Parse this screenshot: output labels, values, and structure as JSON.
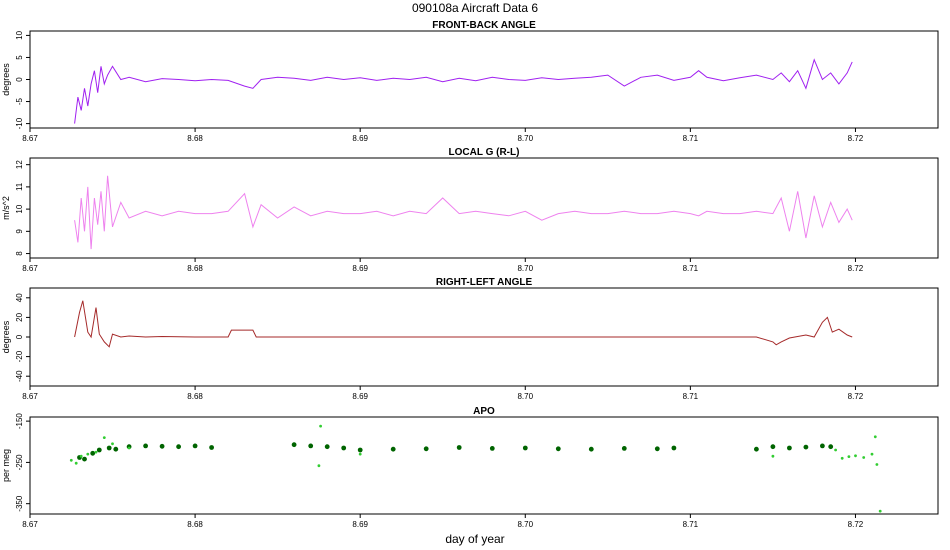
{
  "figure": {
    "title": "090108a    Aircraft Data 6",
    "xlabel": "day of year"
  },
  "chart_data": [
    {
      "type": "line",
      "title": "FRONT-BACK ANGLE",
      "ylabel": "degrees",
      "color": "#a020f0",
      "xlim": [
        8.67,
        8.725
      ],
      "ylim": [
        -11,
        11
      ],
      "xticks": [
        8.67,
        8.68,
        8.69,
        8.7,
        8.71,
        8.72
      ],
      "xtick_labels": [
        "8.67",
        "8.68",
        "8.69",
        "8.70",
        "8.71",
        "8.72"
      ],
      "yticks": [
        -10,
        -5,
        0,
        5,
        10
      ],
      "ytick_labels": [
        "-10",
        "-5",
        "0",
        "5",
        "10"
      ],
      "series": [
        {
          "x": [
            8.6727,
            8.6729,
            8.6731,
            8.6733,
            8.6735,
            8.6737,
            8.6739,
            8.6741,
            8.6743,
            8.6745,
            8.6747,
            8.675,
            8.6755,
            8.676,
            8.677,
            8.678,
            8.679,
            8.68,
            8.681,
            8.682,
            8.683,
            8.6835,
            8.684,
            8.685,
            8.686,
            8.687,
            8.688,
            8.689,
            8.69,
            8.691,
            8.692,
            8.693,
            8.694,
            8.695,
            8.696,
            8.697,
            8.698,
            8.699,
            8.7,
            8.701,
            8.702,
            8.703,
            8.704,
            8.705,
            8.706,
            8.707,
            8.708,
            8.709,
            8.71,
            8.7105,
            8.711,
            8.712,
            8.713,
            8.714,
            8.715,
            8.7155,
            8.716,
            8.7165,
            8.717,
            8.7175,
            8.718,
            8.7185,
            8.719,
            8.7195,
            8.7198
          ],
          "y": [
            -10,
            -4,
            -7,
            -2,
            -6,
            -1,
            2,
            -3,
            3,
            -1,
            1,
            3,
            0,
            0.5,
            -0.5,
            0.2,
            0,
            -0.3,
            0,
            -0.2,
            -1.5,
            -2,
            0,
            0.5,
            0.3,
            -0.2,
            0.5,
            0,
            0.4,
            -0.2,
            0.3,
            0,
            0.5,
            -0.5,
            0.3,
            -0.3,
            0.5,
            0,
            -0.2,
            0.4,
            0,
            0.3,
            0.5,
            1,
            -1.5,
            0.5,
            1,
            -0.2,
            0.5,
            2,
            0.5,
            -0.3,
            0.4,
            1,
            0,
            1.5,
            -0.5,
            2,
            -2,
            4.5,
            0,
            1.5,
            -1,
            1.5,
            4
          ]
        }
      ]
    },
    {
      "type": "line",
      "title": "LOCAL G (R-L)",
      "ylabel": "m/s^2",
      "color": "#ee82ee",
      "xlim": [
        8.67,
        8.725
      ],
      "ylim": [
        7.8,
        12.3
      ],
      "xticks": [
        8.67,
        8.68,
        8.69,
        8.7,
        8.71,
        8.72
      ],
      "xtick_labels": [
        "8.67",
        "8.68",
        "8.69",
        "8.70",
        "8.71",
        "8.72"
      ],
      "yticks": [
        8,
        9,
        10,
        11,
        12
      ],
      "ytick_labels": [
        "8",
        "9",
        "10",
        "11",
        "12"
      ],
      "series": [
        {
          "x": [
            8.6727,
            8.6729,
            8.6731,
            8.6733,
            8.6735,
            8.6737,
            8.6739,
            8.6741,
            8.6743,
            8.6745,
            8.6747,
            8.675,
            8.6755,
            8.676,
            8.677,
            8.678,
            8.679,
            8.68,
            8.681,
            8.682,
            8.683,
            8.6835,
            8.684,
            8.685,
            8.686,
            8.687,
            8.688,
            8.689,
            8.69,
            8.691,
            8.692,
            8.693,
            8.694,
            8.695,
            8.696,
            8.697,
            8.698,
            8.699,
            8.7,
            8.701,
            8.702,
            8.703,
            8.704,
            8.705,
            8.706,
            8.707,
            8.708,
            8.709,
            8.71,
            8.7105,
            8.711,
            8.712,
            8.713,
            8.714,
            8.715,
            8.7155,
            8.716,
            8.7165,
            8.717,
            8.7175,
            8.718,
            8.7185,
            8.719,
            8.7195,
            8.7198
          ],
          "y": [
            9.5,
            8.5,
            10.5,
            9,
            11,
            8.2,
            10.5,
            9.3,
            10.8,
            9,
            11.5,
            9.2,
            10.3,
            9.6,
            9.9,
            9.7,
            9.9,
            9.8,
            9.8,
            9.9,
            10.7,
            9.2,
            10.2,
            9.6,
            10.1,
            9.7,
            9.9,
            9.8,
            9.8,
            9.9,
            9.7,
            9.9,
            9.8,
            10.5,
            9.8,
            9.9,
            9.8,
            9.7,
            9.9,
            9.5,
            9.8,
            9.9,
            9.8,
            9.8,
            9.9,
            9.8,
            9.8,
            9.9,
            9.8,
            9.7,
            9.9,
            9.8,
            9.8,
            9.9,
            9.8,
            10.5,
            9.0,
            10.8,
            8.7,
            10.6,
            9.2,
            10.3,
            9.4,
            10.0,
            9.5
          ]
        }
      ]
    },
    {
      "type": "line",
      "title": "RIGHT-LEFT ANGLE",
      "ylabel": "degrees",
      "color": "#a52a2a",
      "xlim": [
        8.67,
        8.725
      ],
      "ylim": [
        -50,
        50
      ],
      "xticks": [
        8.67,
        8.68,
        8.69,
        8.7,
        8.71,
        8.72
      ],
      "xtick_labels": [
        "8.67",
        "8.68",
        "8.69",
        "8.70",
        "8.71",
        "8.72"
      ],
      "yticks": [
        -40,
        -20,
        0,
        20,
        40
      ],
      "ytick_labels": [
        "-40",
        "-20",
        "0",
        "20",
        "40"
      ],
      "series": [
        {
          "x": [
            8.6727,
            8.673,
            8.6732,
            8.6735,
            8.6737,
            8.674,
            8.6742,
            8.6745,
            8.6748,
            8.675,
            8.6755,
            8.676,
            8.677,
            8.678,
            8.68,
            8.682,
            8.6822,
            8.683,
            8.6835,
            8.6837,
            8.684,
            8.69,
            8.695,
            8.7,
            8.705,
            8.71,
            8.714,
            8.715,
            8.7152,
            8.7155,
            8.716,
            8.717,
            8.7175,
            8.718,
            8.7183,
            8.7186,
            8.719,
            8.7195,
            8.7198
          ],
          "y": [
            0,
            25,
            37,
            5,
            0,
            30,
            3,
            -5,
            -10,
            3,
            0,
            1,
            0,
            0.5,
            0,
            0,
            7,
            7,
            7,
            0,
            0,
            0,
            0,
            0,
            0,
            0,
            0,
            -5,
            -8,
            -5,
            -1,
            2,
            0,
            15,
            20,
            5,
            8,
            2,
            0
          ]
        }
      ]
    },
    {
      "type": "scatter",
      "title": "APO",
      "ylabel": "per meg",
      "colors": [
        "#006400",
        "#32cd32"
      ],
      "xlim": [
        8.67,
        8.725
      ],
      "ylim": [
        -375,
        -140
      ],
      "xticks": [
        8.67,
        8.68,
        8.69,
        8.7,
        8.71,
        8.72
      ],
      "xtick_labels": [
        "8.67",
        "8.68",
        "8.69",
        "8.70",
        "8.71",
        "8.72"
      ],
      "yticks": [
        -350,
        -250,
        -150
      ],
      "ytick_labels": [
        "-350",
        "-250",
        "-150"
      ],
      "series": [
        {
          "x": [
            8.673,
            8.6733,
            8.6738,
            8.6742,
            8.6748,
            8.6752,
            8.676,
            8.677,
            8.678,
            8.679,
            8.68,
            8.681,
            8.686,
            8.687,
            8.688,
            8.689,
            8.69,
            8.692,
            8.694,
            8.696,
            8.698,
            8.7,
            8.702,
            8.704,
            8.706,
            8.708,
            8.709,
            8.714,
            8.715,
            8.716,
            8.717,
            8.718,
            8.7185
          ],
          "y": [
            -238,
            -242,
            -228,
            -220,
            -215,
            -218,
            -212,
            -210,
            -211,
            -212,
            -210,
            -214,
            -207,
            -210,
            -212,
            -215,
            -220,
            -218,
            -217,
            -214,
            -216,
            -215,
            -217,
            -218,
            -216,
            -217,
            -215,
            -218,
            -212,
            -215,
            -213,
            -210,
            -212
          ]
        },
        {
          "x": [
            8.6725,
            8.6728,
            8.6731,
            8.6735,
            8.674,
            8.6745,
            8.675,
            8.676,
            8.6876,
            8.6875,
            8.69,
            8.715,
            8.7188,
            8.7192,
            8.7196,
            8.72,
            8.7205,
            8.721,
            8.7213,
            8.7215,
            8.7212
          ],
          "y": [
            -245,
            -252,
            -235,
            -230,
            -225,
            -190,
            -205,
            -215,
            -162,
            -258,
            -230,
            -235,
            -220,
            -240,
            -236,
            -234,
            -238,
            -230,
            -255,
            -368,
            -188
          ]
        }
      ]
    }
  ]
}
